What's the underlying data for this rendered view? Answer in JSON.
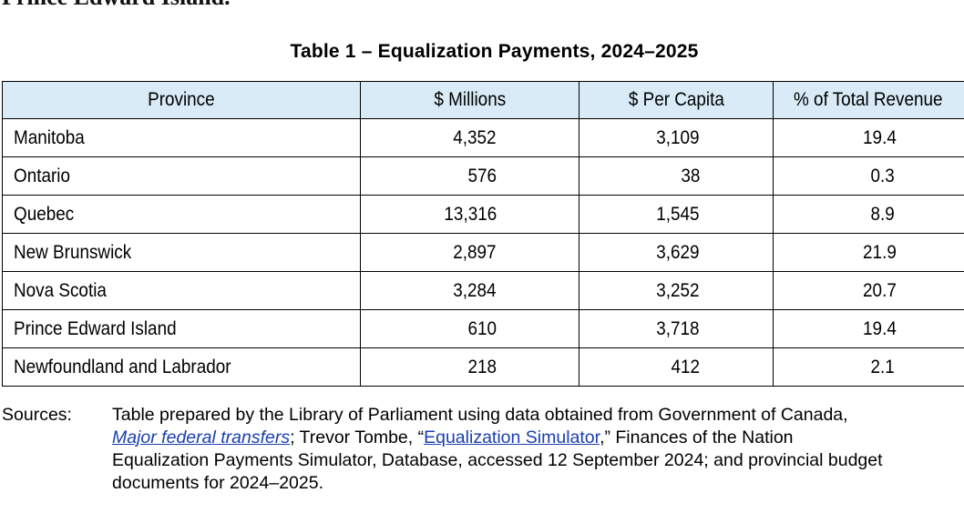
{
  "top_fragment": "Prince Edward Island.",
  "caption": "Table 1 – Equalization Payments, 2024–2025",
  "table": {
    "headers": [
      "Province",
      "$ Millions",
      "$ Per Capita",
      "% of Total Revenue"
    ],
    "rows": [
      {
        "province": "Manitoba",
        "millions": "4,352",
        "per_capita": "3,109",
        "pct_revenue": "19.4"
      },
      {
        "province": "Ontario",
        "millions": "576",
        "per_capita": "38",
        "pct_revenue": "0.3"
      },
      {
        "province": "Quebec",
        "millions": "13,316",
        "per_capita": "1,545",
        "pct_revenue": "8.9"
      },
      {
        "province": "New Brunswick",
        "millions": "2,897",
        "per_capita": "3,629",
        "pct_revenue": "21.9"
      },
      {
        "province": "Nova Scotia",
        "millions": "3,284",
        "per_capita": "3,252",
        "pct_revenue": "20.7"
      },
      {
        "province": "Prince Edward Island",
        "millions": "610",
        "per_capita": "3,718",
        "pct_revenue": "19.4"
      },
      {
        "province": "Newfoundland and Labrador",
        "millions": "218",
        "per_capita": "412",
        "pct_revenue": "2.1"
      }
    ]
  },
  "sources": {
    "label": "Sources:",
    "line1": "Table prepared by the Library of Parliament using data obtained from Government of  Canada,",
    "link1": "Major federal transfers",
    "text2a": "; Trevor Tombe, “",
    "link2": "Equalization Simulator",
    "text2b": ",” Finances of the Nation",
    "line3": "Equalization Payments Simulator, Database, accessed 12 September 2024; and provincial budget",
    "line4": "documents for 2024–2025."
  },
  "colors": {
    "header_bg": "#d8ebf6",
    "link": "#1a3fb0"
  }
}
